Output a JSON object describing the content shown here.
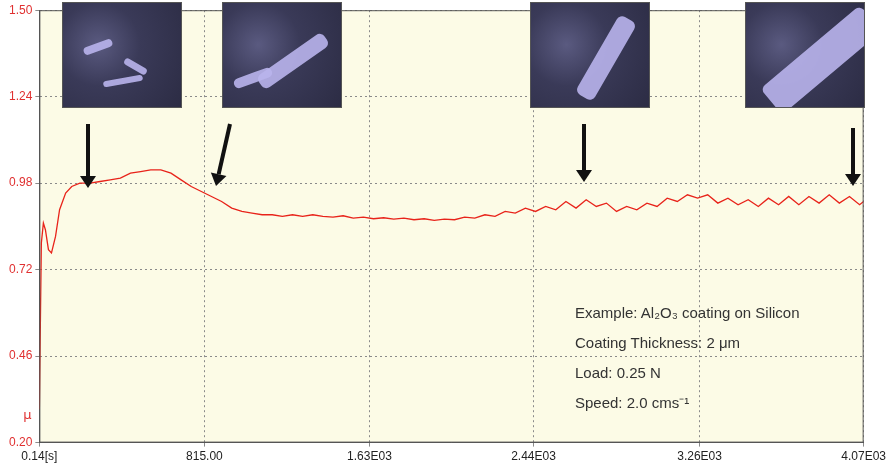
{
  "chart_data": {
    "type": "line",
    "ylabel": "μ",
    "annotations": [
      "Example: Al₂O₃ coating on Silicon",
      "Coating Thickness: 2 μm",
      "Load: 0.25 N",
      "Speed: 2.0 cms⁻¹"
    ],
    "color": "#e8231a",
    "grid": true,
    "xlim": [
      0.14,
      4070
    ],
    "xticks": [
      {
        "value": 0.14,
        "label": "0.14[s]"
      },
      {
        "value": 815,
        "label": "815.00"
      },
      {
        "value": 1630,
        "label": "1.63E03"
      },
      {
        "value": 2440,
        "label": "2.44E03"
      },
      {
        "value": 3260,
        "label": "3.26E03"
      },
      {
        "value": 4070,
        "label": "4.07E03"
      }
    ],
    "ylim": [
      0.2,
      1.5
    ],
    "yticks": [
      {
        "value": 0.2,
        "label": "0.20"
      },
      0.46,
      0.72,
      0.98,
      1.24,
      {
        "value": 1.5,
        "label": "1.50"
      }
    ],
    "x": [
      0.14,
      5,
      10,
      20,
      30,
      45,
      60,
      80,
      100,
      130,
      160,
      200,
      250,
      300,
      350,
      400,
      450,
      500,
      550,
      600,
      650,
      700,
      750,
      800,
      850,
      900,
      950,
      1000,
      1050,
      1100,
      1150,
      1200,
      1250,
      1300,
      1350,
      1400,
      1450,
      1500,
      1550,
      1600,
      1650,
      1700,
      1750,
      1800,
      1850,
      1900,
      1950,
      2000,
      2050,
      2100,
      2150,
      2200,
      2250,
      2300,
      2350,
      2400,
      2450,
      2500,
      2550,
      2600,
      2650,
      2700,
      2750,
      2800,
      2850,
      2900,
      2950,
      3000,
      3050,
      3100,
      3150,
      3200,
      3250,
      3300,
      3350,
      3400,
      3450,
      3500,
      3550,
      3600,
      3650,
      3700,
      3750,
      3800,
      3850,
      3900,
      3950,
      4000,
      4050,
      4070
    ],
    "values": [
      0.3,
      0.55,
      0.8,
      0.86,
      0.84,
      0.78,
      0.77,
      0.82,
      0.9,
      0.95,
      0.97,
      0.98,
      0.98,
      0.985,
      0.99,
      0.995,
      1.01,
      1.015,
      1.02,
      1.02,
      1.01,
      0.99,
      0.97,
      0.955,
      0.94,
      0.925,
      0.905,
      0.895,
      0.89,
      0.885,
      0.885,
      0.88,
      0.885,
      0.88,
      0.885,
      0.88,
      0.878,
      0.882,
      0.875,
      0.878,
      0.873,
      0.876,
      0.872,
      0.875,
      0.87,
      0.873,
      0.868,
      0.872,
      0.87,
      0.878,
      0.875,
      0.885,
      0.88,
      0.895,
      0.89,
      0.905,
      0.895,
      0.91,
      0.9,
      0.925,
      0.905,
      0.93,
      0.91,
      0.92,
      0.895,
      0.91,
      0.9,
      0.92,
      0.91,
      0.935,
      0.925,
      0.945,
      0.935,
      0.945,
      0.92,
      0.935,
      0.915,
      0.93,
      0.91,
      0.935,
      0.915,
      0.94,
      0.915,
      0.94,
      0.92,
      0.945,
      0.92,
      0.94,
      0.915,
      0.925
    ]
  }
}
